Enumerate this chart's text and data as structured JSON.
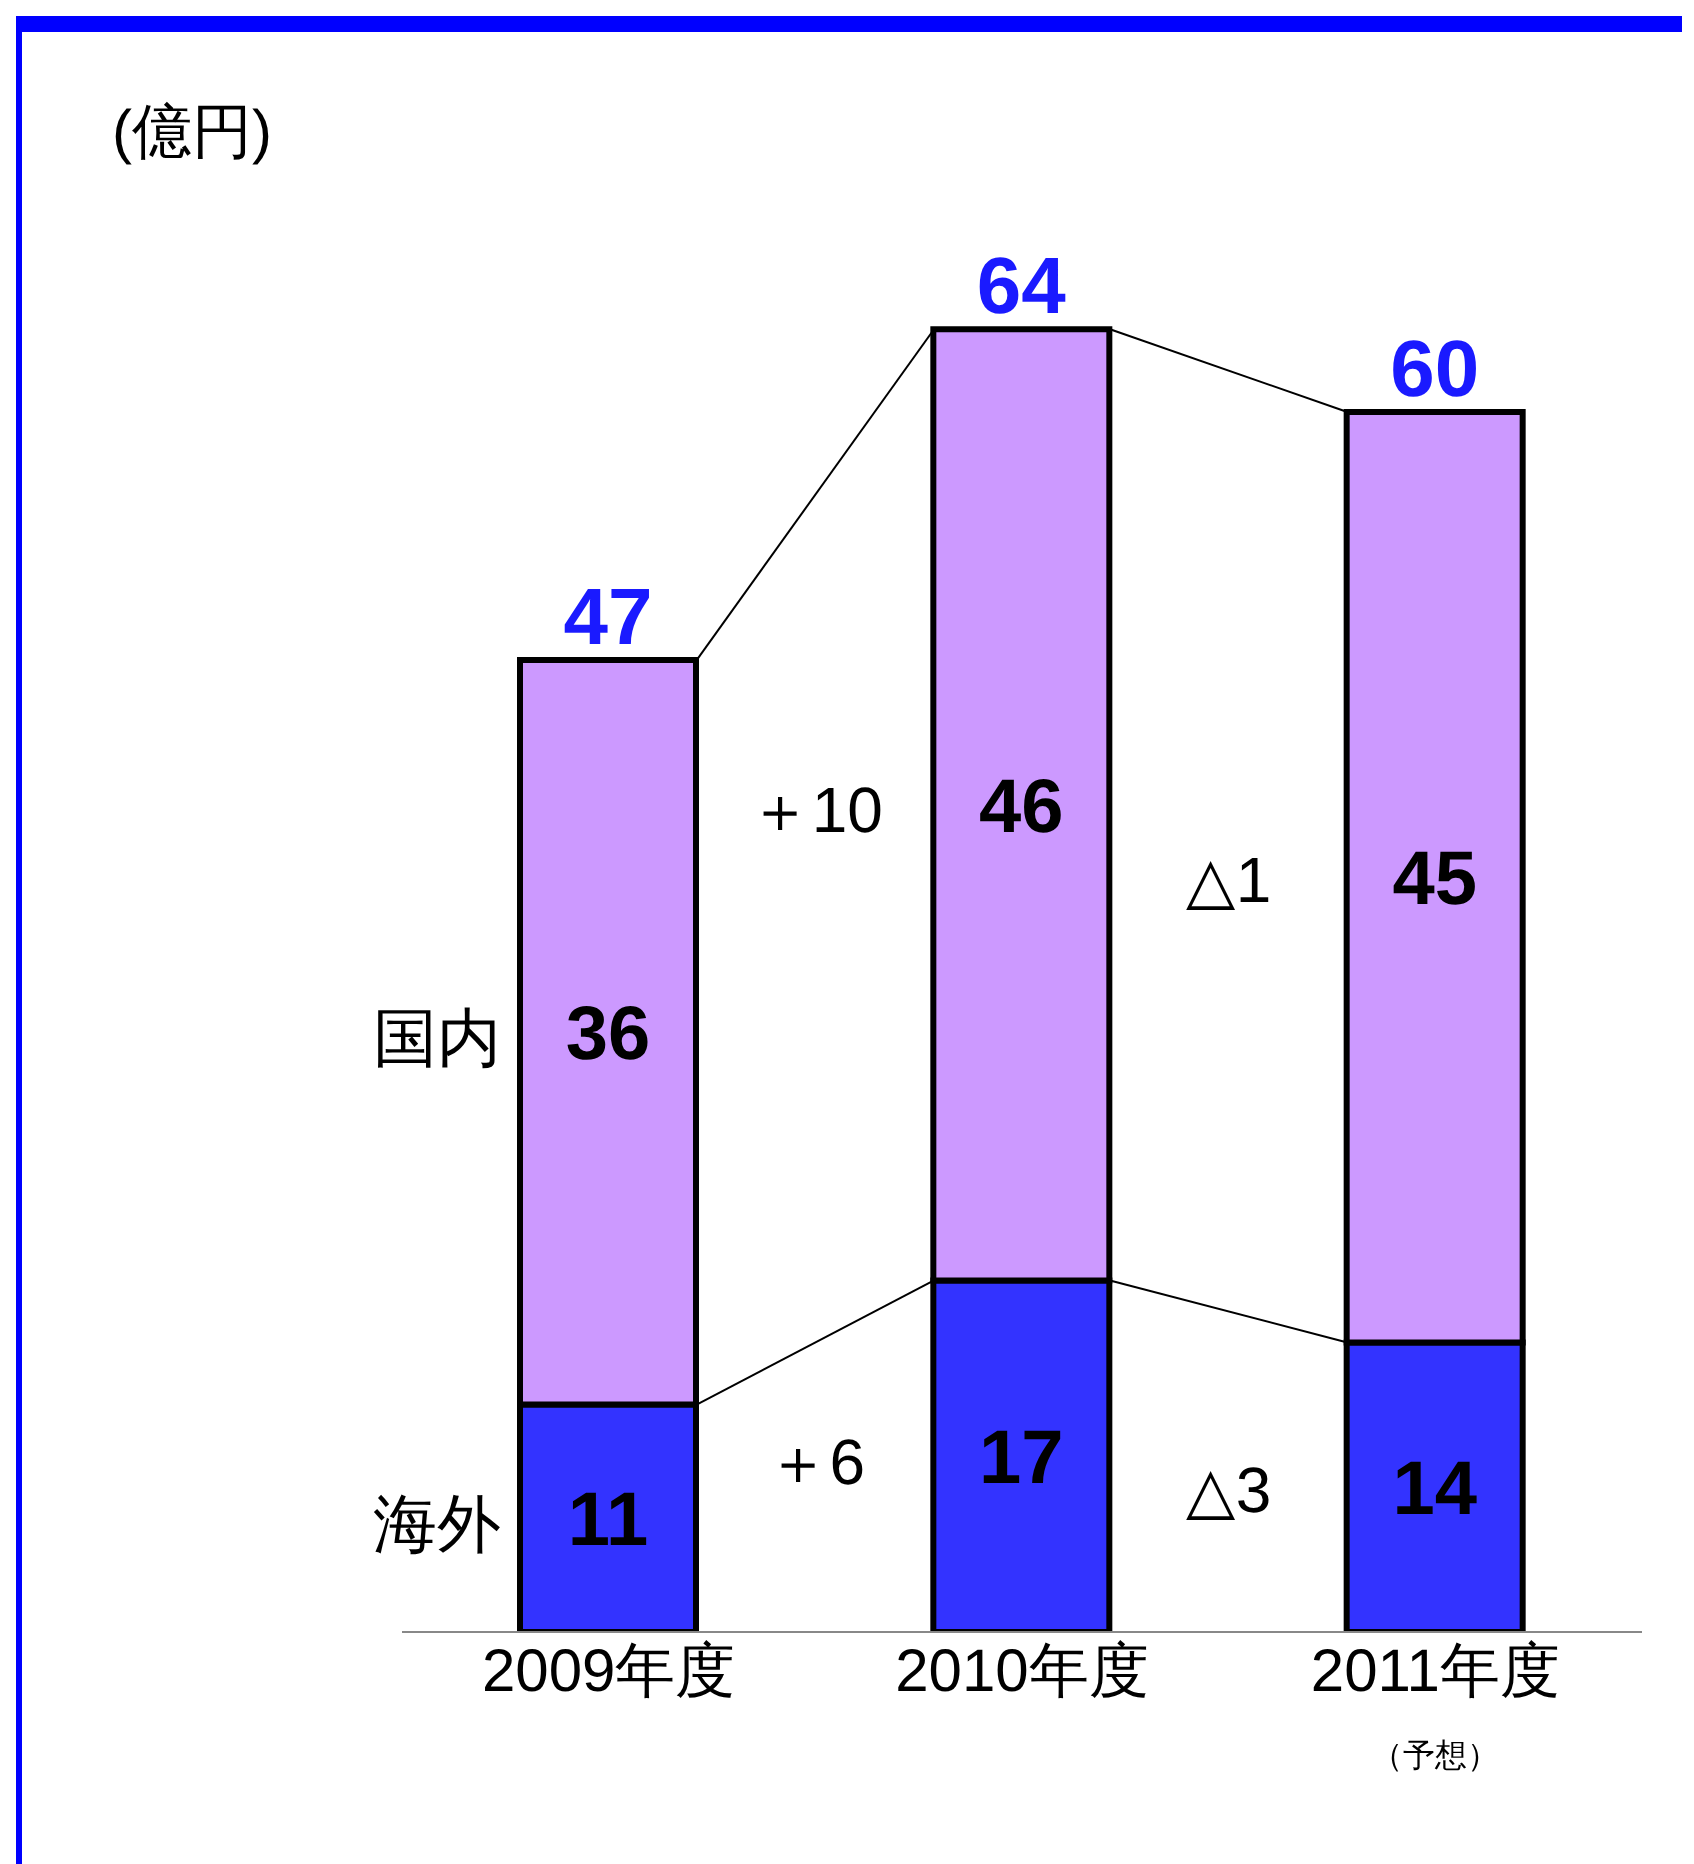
{
  "chart_data": {
    "type": "bar",
    "stacked": true,
    "ylabel": "(億円)",
    "categories": [
      "2009年度",
      "2010年度",
      "2011年度"
    ],
    "series": [
      {
        "name": "海外",
        "color": "#3333ff",
        "values": [
          11,
          17,
          14
        ]
      },
      {
        "name": "国内",
        "color": "#cc99ff",
        "values": [
          36,
          46,
          45
        ]
      }
    ],
    "data_labels": true,
    "totals": [
      "47",
      "64",
      "60"
    ],
    "annotations": [
      "＋10",
      "△1",
      "＋6",
      "△3",
      "（予想）"
    ]
  }
}
